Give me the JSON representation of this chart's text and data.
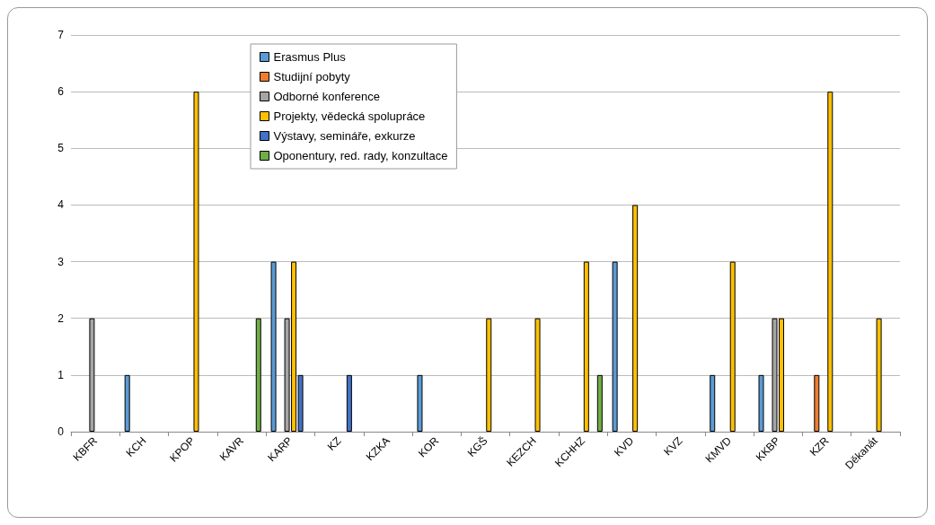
{
  "chart_data": {
    "type": "bar",
    "categories": [
      "KBFR",
      "KCH",
      "KPOP",
      "KAVR",
      "KARP",
      "KZ",
      "KZKA",
      "KOR",
      "KGŠ",
      "KEZCH",
      "KCHHZ",
      "KVD",
      "KVZ",
      "KMVD",
      "KKBP",
      "KZR",
      "Děkanát"
    ],
    "series": [
      {
        "name": "Erasmus Plus",
        "color": "#5b9bd5",
        "values": [
          null,
          1,
          null,
          null,
          3,
          null,
          null,
          1,
          null,
          null,
          null,
          3,
          null,
          1,
          1,
          null,
          null
        ]
      },
      {
        "name": "Studijní pobyty",
        "color": "#ed7d31",
        "values": [
          null,
          null,
          null,
          null,
          null,
          null,
          null,
          null,
          null,
          null,
          null,
          null,
          null,
          null,
          null,
          1,
          null
        ]
      },
      {
        "name": "Odborné konference",
        "color": "#a5a5a5",
        "values": [
          2,
          null,
          null,
          null,
          2,
          null,
          null,
          null,
          null,
          null,
          null,
          null,
          null,
          null,
          2,
          null,
          null
        ]
      },
      {
        "name": "Projekty, vědecká spolupráce",
        "color": "#ffc000",
        "values": [
          null,
          null,
          6,
          null,
          3,
          null,
          null,
          null,
          2,
          2,
          3,
          4,
          null,
          3,
          2,
          6,
          2
        ]
      },
      {
        "name": "Výstavy, semináře, exkurze",
        "color": "#4472c4",
        "values": [
          null,
          null,
          null,
          null,
          1,
          1,
          null,
          null,
          null,
          null,
          null,
          null,
          null,
          null,
          null,
          null,
          null
        ]
      },
      {
        "name": "Oponentury, red. rady, konzultace",
        "color": "#70ad47",
        "values": [
          null,
          null,
          null,
          2,
          null,
          null,
          null,
          null,
          null,
          null,
          1,
          null,
          null,
          null,
          null,
          null,
          null
        ]
      }
    ],
    "ylim": [
      0,
      7
    ],
    "yticks": [
      0,
      1,
      2,
      3,
      4,
      5,
      6,
      7
    ],
    "grid": "y",
    "legend": "top left"
  }
}
